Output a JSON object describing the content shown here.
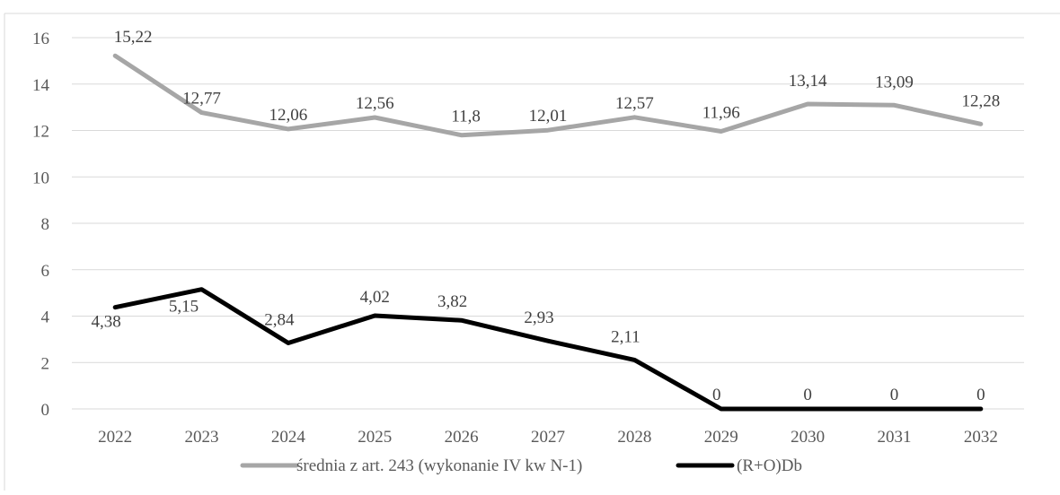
{
  "chart_data": {
    "type": "line",
    "title": "",
    "xlabel": "",
    "ylabel": "",
    "categories": [
      "2022",
      "2023",
      "2024",
      "2025",
      "2026",
      "2027",
      "2028",
      "2029",
      "2030",
      "2031",
      "2032"
    ],
    "yticks": [
      "0",
      "2",
      "4",
      "6",
      "8",
      "10",
      "12",
      "14",
      "16"
    ],
    "ylim": [
      0,
      16
    ],
    "grid": true,
    "legend_position": "bottom",
    "series": [
      {
        "name": "średnia z art. 243 (wykonanie IV kw N-1)",
        "color": "#a6a6a6",
        "values": [
          15.22,
          12.77,
          12.06,
          12.56,
          11.8,
          12.01,
          12.57,
          11.96,
          13.14,
          13.09,
          12.28
        ],
        "labels": [
          "15,22",
          "12,77",
          "12,06",
          "12,56",
          "11,8",
          "12,01",
          "12,57",
          "11,96",
          "13,14",
          "13,09",
          "12,28"
        ]
      },
      {
        "name": "(R+O)Db",
        "color": "#000000",
        "values": [
          4.38,
          5.15,
          2.84,
          4.02,
          3.82,
          2.93,
          2.11,
          0,
          0,
          0,
          0
        ],
        "labels": [
          "4,38",
          "5,15",
          "2,84",
          "4,02",
          "3,82",
          "2,93",
          "2,11",
          "0",
          "0",
          "0",
          "0"
        ]
      }
    ]
  }
}
